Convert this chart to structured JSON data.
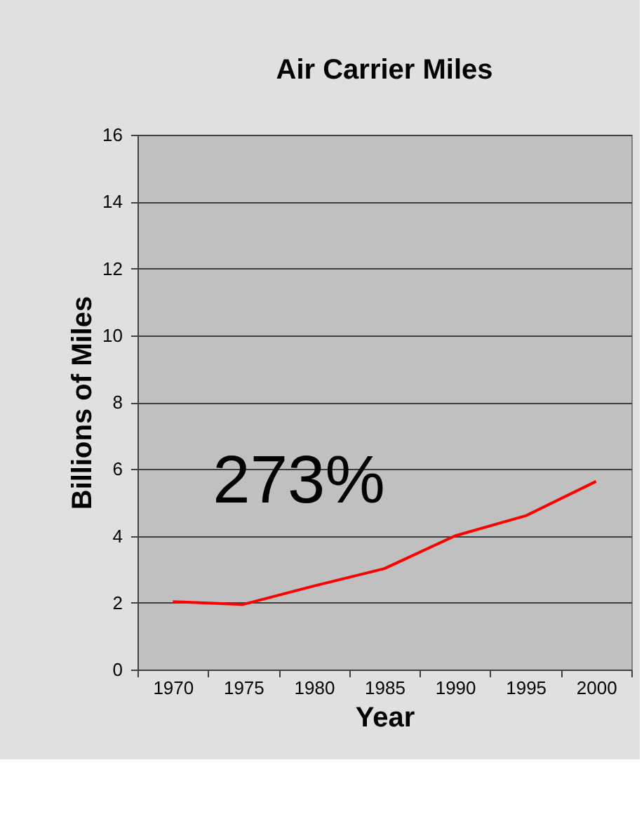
{
  "chart_data": {
    "type": "line",
    "title": "Air Carrier Miles",
    "xlabel": "Year",
    "ylabel": "Billions of Miles",
    "categories": [
      "1970",
      "1975",
      "1980",
      "1985",
      "1990",
      "1995",
      "2000"
    ],
    "series": [
      {
        "color": "#ff0000",
        "values": [
          2.03,
          1.95,
          2.5,
          3.02,
          4.0,
          4.6,
          5.63
        ]
      }
    ],
    "ylim": [
      0,
      16
    ],
    "yticks": [
      0,
      2,
      4,
      6,
      8,
      10,
      12,
      14,
      16
    ],
    "grid": "y",
    "marker": "none",
    "line_style": "solid",
    "annotations": [
      "273%"
    ]
  }
}
